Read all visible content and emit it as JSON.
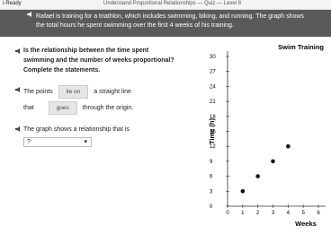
{
  "header": {
    "brand": "i-Ready",
    "title": "Understand Proportional Relationships — Quiz — Level 8"
  },
  "prompt": "Rafael is training for a triathlon, which includes swimming, biking, and running. The graph shows the total hours he spent swimming over the first 4 weeks of his training.",
  "question": "Is the relationship between the time spent swimming and the number of weeks proportional? Complete the statements.",
  "statements": {
    "s1_before": "The points",
    "s1_answer": "lie on",
    "s1_after": "a straight line",
    "s2_before": "that",
    "s2_answer": "goes",
    "s2_after": "through the origin.",
    "s3": "The graph shows a relationship that is",
    "dropdown": "?"
  },
  "chart_data": {
    "type": "scatter",
    "title": "Swim Training",
    "x_label": "Weeks",
    "y_label": "Time (h)",
    "x": [
      1,
      2,
      3,
      4
    ],
    "values": [
      3,
      6,
      9,
      12
    ],
    "color": "#111111",
    "xlim": [
      0,
      6
    ],
    "xticks": [
      0,
      1,
      2,
      3,
      4,
      5,
      6
    ],
    "ylim": [
      0,
      30
    ],
    "yticks": [
      0,
      3,
      6,
      9,
      12,
      15,
      18,
      21,
      24,
      27,
      30
    ]
  }
}
